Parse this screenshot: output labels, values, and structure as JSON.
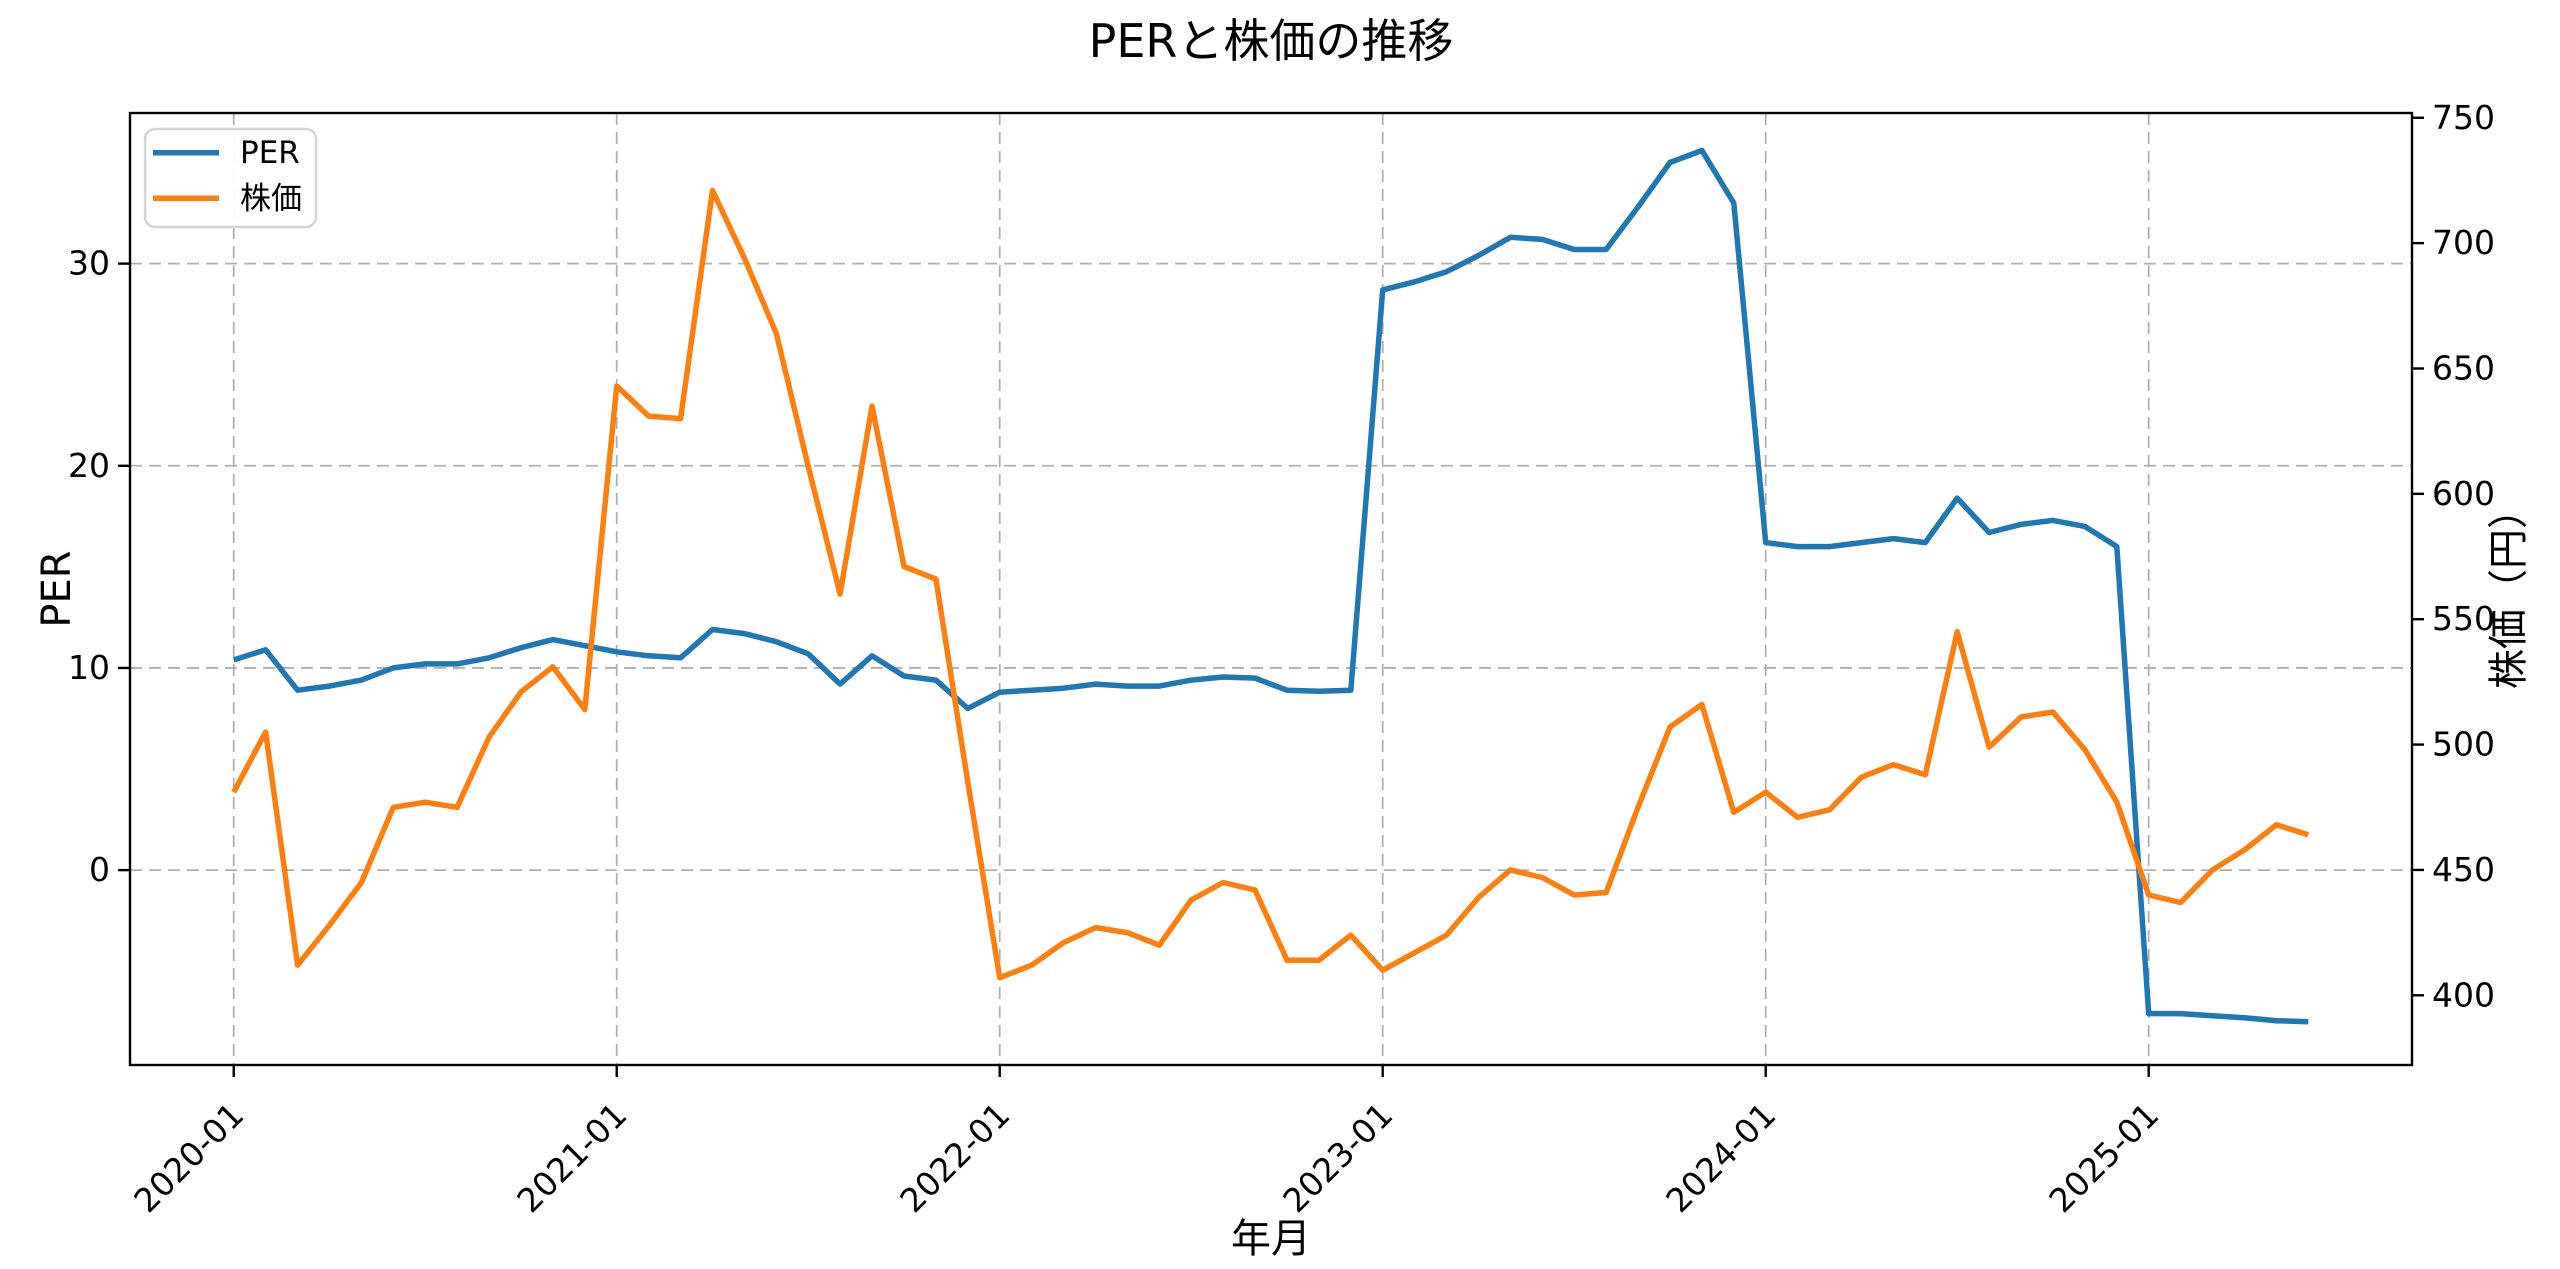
{
  "page": {
    "background": "#ffffff"
  },
  "chart_data": {
    "type": "line",
    "title": "PERと株価の推移",
    "xlabel": "年月",
    "ylabel_left": "PER",
    "ylabel_right": "株価（円）",
    "grid": {
      "style": "dashed",
      "color": "#b0b0b0",
      "horizontal_from": "left_axis",
      "vertical_from": "x_axis"
    },
    "legend": {
      "position": "upper-left",
      "entries": [
        "PER",
        "株価"
      ]
    },
    "categories": [
      "2020-01",
      "2020-02",
      "2020-03",
      "2020-04",
      "2020-05",
      "2020-06",
      "2020-07",
      "2020-08",
      "2020-09",
      "2020-10",
      "2020-11",
      "2020-12",
      "2021-01",
      "2021-02",
      "2021-03",
      "2021-04",
      "2021-05",
      "2021-06",
      "2021-07",
      "2021-08",
      "2021-09",
      "2021-10",
      "2021-11",
      "2021-12",
      "2022-01",
      "2022-02",
      "2022-03",
      "2022-04",
      "2022-05",
      "2022-06",
      "2022-07",
      "2022-08",
      "2022-09",
      "2022-10",
      "2022-11",
      "2022-12",
      "2023-01",
      "2023-02",
      "2023-03",
      "2023-04",
      "2023-05",
      "2023-06",
      "2023-07",
      "2023-08",
      "2023-09",
      "2023-10",
      "2023-11",
      "2023-12",
      "2024-01",
      "2024-02",
      "2024-03",
      "2024-04",
      "2024-05",
      "2024-06",
      "2024-07",
      "2024-08",
      "2024-09",
      "2024-10",
      "2024-11",
      "2024-12",
      "2025-01",
      "2025-02",
      "2025-03",
      "2025-04",
      "2025-05",
      "2025-06"
    ],
    "series": [
      {
        "name": "PER",
        "axis": "left",
        "color": "#1f77b4",
        "values": [
          10.4,
          10.9,
          8.9,
          9.1,
          9.4,
          10.0,
          10.2,
          10.2,
          10.5,
          11.0,
          11.4,
          11.1,
          10.8,
          10.6,
          10.5,
          11.9,
          11.7,
          11.3,
          10.7,
          9.2,
          10.6,
          9.6,
          9.4,
          8.0,
          8.8,
          8.9,
          9.0,
          9.2,
          9.1,
          9.1,
          9.4,
          9.55,
          9.5,
          8.9,
          8.85,
          8.9,
          28.7,
          29.1,
          29.6,
          30.4,
          31.3,
          31.2,
          30.7,
          30.7,
          32.8,
          35.0,
          35.6,
          33.0,
          16.2,
          16.0,
          16.0,
          16.2,
          16.4,
          16.2,
          18.4,
          16.7,
          17.1,
          17.3,
          17.0,
          16.0,
          -7.1,
          -7.1,
          -7.2,
          -7.3,
          -7.45,
          -7.5
        ]
      },
      {
        "name": "株価",
        "axis": "right",
        "color": "#ff7f0e",
        "values": [
          481,
          505,
          412,
          428,
          445,
          475,
          477,
          475,
          503,
          521,
          531,
          514,
          643,
          631,
          630,
          721,
          694,
          664,
          611,
          560,
          635,
          571,
          566,
          485,
          407,
          412,
          421,
          427,
          425,
          420,
          438,
          445,
          442,
          414,
          414,
          424,
          410,
          417,
          424,
          439,
          450,
          447,
          440,
          441,
          475,
          507,
          516,
          473,
          481,
          471,
          474,
          487,
          492,
          488,
          545,
          499,
          511,
          513,
          498,
          477,
          440,
          437,
          450,
          458,
          468,
          464
        ]
      }
    ],
    "x_ticks": {
      "indices": [
        0,
        12,
        24,
        36,
        48,
        60
      ],
      "labels": [
        "2020-01",
        "2021-01",
        "2022-01",
        "2023-01",
        "2024-01",
        "2025-01"
      ],
      "rotation_deg": 45
    },
    "left_axis": {
      "ticks": [
        0,
        10,
        20,
        30
      ],
      "range": [
        -9.64,
        37.45
      ],
      "color": "#1f77b4"
    },
    "right_axis": {
      "ticks": [
        400,
        450,
        500,
        550,
        600,
        650,
        700,
        750
      ],
      "range": [
        372.2,
        751.9
      ],
      "color": "#ff7f0e"
    },
    "x_range_months": [
      -3.25,
      68.25
    ]
  }
}
